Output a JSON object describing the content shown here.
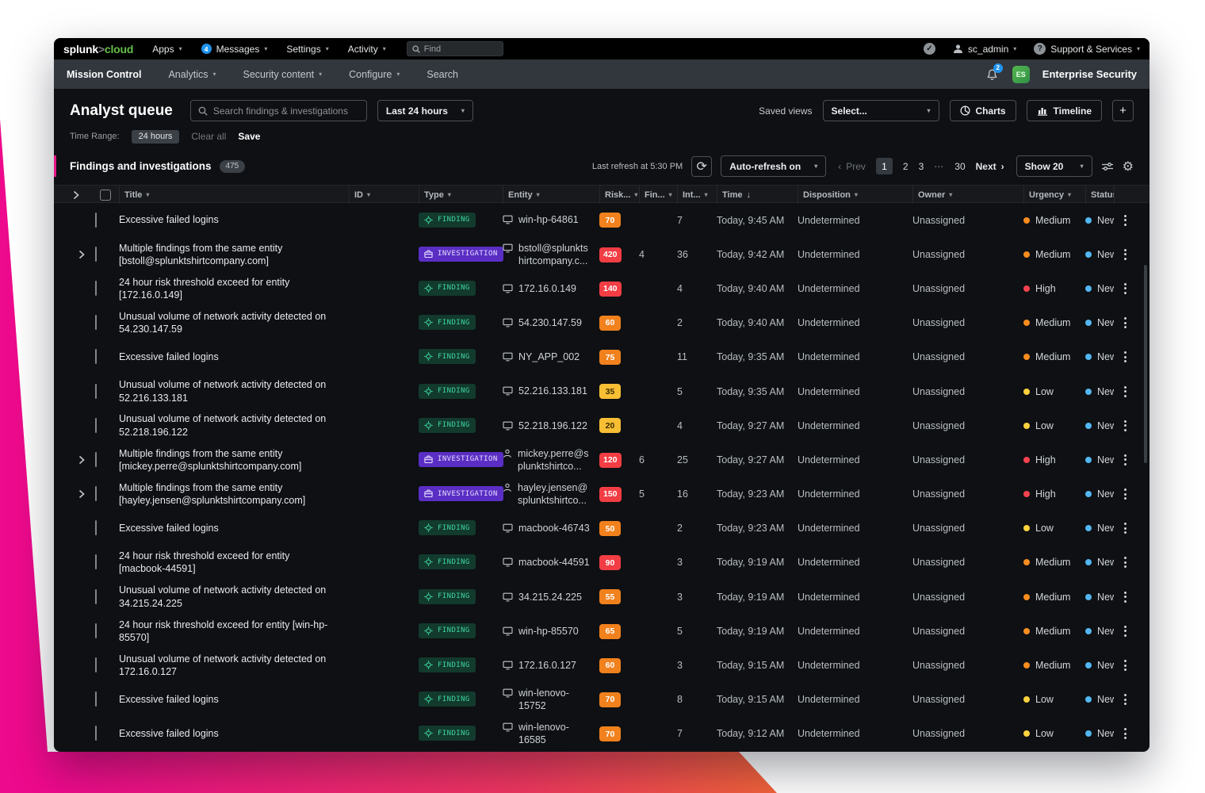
{
  "colors": {
    "brand_gradient_start": "#ee0a8c",
    "brand_gradient_end": "#f58220",
    "accent_green_logo": "#65bf4a",
    "finding_badge_bg": "#123a2d",
    "finding_badge_text": "#3fd6a5",
    "investigation_badge_bg": "#5a2ec4",
    "risk_red": "#f23d44",
    "risk_orange": "#f1811d",
    "risk_yellow": "#f8be34",
    "urgency_medium": "#f78c1f",
    "urgency_high": "#f5424e",
    "urgency_low": "#ffd23e",
    "status_new": "#53b6f0",
    "notification_blue": "#1e93f0"
  },
  "topbar": {
    "logo_splunk": "splunk",
    "logo_gt": ">",
    "logo_cloud": "cloud",
    "menu_apps": "Apps",
    "messages_badge": "4",
    "menu_messages": "Messages",
    "menu_settings": "Settings",
    "menu_activity": "Activity",
    "find_placeholder": "Find",
    "user_name": "sc_admin",
    "support_label": "Support & Services"
  },
  "appbar": {
    "tab_mission_control": "Mission Control",
    "tab_analytics": "Analytics",
    "tab_security_content": "Security content",
    "tab_configure": "Configure",
    "tab_search": "Search",
    "bell_badge": "2",
    "product_initials": "ES",
    "product_name": "Enterprise Security"
  },
  "queue_header": {
    "title": "Analyst queue",
    "search_placeholder": "Search findings & investigations",
    "time_select": "Last 24 hours",
    "saved_views_label": "Saved views",
    "saved_views_select": "Select...",
    "charts_button": "Charts",
    "timeline_button": "Timeline",
    "add_button": "+"
  },
  "time_range_row": {
    "label": "Time Range:",
    "chip": "24 hours",
    "clear_all": "Clear all",
    "save": "Save"
  },
  "toolbar": {
    "title": "Findings and investigations",
    "count": "475",
    "last_refresh": "Last refresh at 5:30 PM",
    "refresh_icon": "⟳",
    "auto_refresh_select": "Auto-refresh on",
    "prev": "Prev",
    "pages": [
      "1",
      "2",
      "3"
    ],
    "current_page": "1",
    "ellipsis": "⋯",
    "last_page": "30",
    "next": "Next",
    "show_select": "Show 20",
    "gear_icon": "⚙"
  },
  "table": {
    "columns": [
      {
        "name": "expand-all",
        "label": "",
        "sort": "chevron"
      },
      {
        "name": "select-all",
        "label": "",
        "sort": "checkbox"
      },
      {
        "name": "title",
        "label": "Title",
        "sort": "caret"
      },
      {
        "name": "id",
        "label": "ID",
        "sort": "caret"
      },
      {
        "name": "type",
        "label": "Type",
        "sort": "caret"
      },
      {
        "name": "entity",
        "label": "Entity",
        "sort": "caret"
      },
      {
        "name": "risk",
        "label": "Risk...",
        "sort": "caret"
      },
      {
        "name": "findings",
        "label": "Fin...",
        "sort": "caret"
      },
      {
        "name": "intermediate",
        "label": "Int...",
        "sort": "caret"
      },
      {
        "name": "time",
        "label": "Time",
        "sort": "down-arrow"
      },
      {
        "name": "disposition",
        "label": "Disposition",
        "sort": "caret"
      },
      {
        "name": "owner",
        "label": "Owner",
        "sort": "caret"
      },
      {
        "name": "urgency",
        "label": "Urgency",
        "sort": "caret"
      },
      {
        "name": "status",
        "label": "Status",
        "sort": "none"
      },
      {
        "name": "actions",
        "label": "",
        "sort": "none"
      }
    ],
    "rows": [
      {
        "expandable": false,
        "title": "Excessive failed logins",
        "type": "FINDING",
        "entity_icon": "monitor",
        "entity": "win-hp-64861",
        "risk": "70",
        "risk_level": "orange",
        "findings": "",
        "intermediate": "7",
        "time": "Today, 9:45 AM",
        "disposition": "Undetermined",
        "owner": "Unassigned",
        "urgency": "Medium",
        "urgency_level": "medium",
        "status": "New"
      },
      {
        "expandable": true,
        "title": "Multiple findings from the same entity [bstoll@splunktshirtcompany.com]",
        "type": "INVESTIGATION",
        "entity_icon": "monitor",
        "entity": "bstoll@splunktshirtcompany.c...",
        "risk": "420",
        "risk_level": "red",
        "findings": "4",
        "intermediate": "36",
        "time": "Today, 9:42 AM",
        "disposition": "Undetermined",
        "owner": "Unassigned",
        "urgency": "Medium",
        "urgency_level": "medium",
        "status": "New"
      },
      {
        "expandable": false,
        "title": "24 hour risk threshold exceed for entity [172.16.0.149]",
        "type": "FINDING",
        "entity_icon": "monitor",
        "entity": "172.16.0.149",
        "risk": "140",
        "risk_level": "red",
        "findings": "",
        "intermediate": "4",
        "time": "Today, 9:40 AM",
        "disposition": "Undetermined",
        "owner": "Unassigned",
        "urgency": "High",
        "urgency_level": "high",
        "status": "New"
      },
      {
        "expandable": false,
        "title": "Unusual volume of network activity detected on 54.230.147.59",
        "type": "FINDING",
        "entity_icon": "monitor",
        "entity": "54.230.147.59",
        "risk": "60",
        "risk_level": "orange",
        "findings": "",
        "intermediate": "2",
        "time": "Today, 9:40 AM",
        "disposition": "Undetermined",
        "owner": "Unassigned",
        "urgency": "Medium",
        "urgency_level": "medium",
        "status": "New"
      },
      {
        "expandable": false,
        "title": "Excessive failed logins",
        "type": "FINDING",
        "entity_icon": "monitor",
        "entity": "NY_APP_002",
        "risk": "75",
        "risk_level": "orange",
        "findings": "",
        "intermediate": "11",
        "time": "Today, 9:35 AM",
        "disposition": "Undetermined",
        "owner": "Unassigned",
        "urgency": "Medium",
        "urgency_level": "medium",
        "status": "New"
      },
      {
        "expandable": false,
        "title": "Unusual volume of network activity detected on 52.216.133.181",
        "type": "FINDING",
        "entity_icon": "monitor",
        "entity": "52.216.133.181",
        "risk": "35",
        "risk_level": "yellow",
        "findings": "",
        "intermediate": "5",
        "time": "Today, 9:35 AM",
        "disposition": "Undetermined",
        "owner": "Unassigned",
        "urgency": "Low",
        "urgency_level": "low",
        "status": "New"
      },
      {
        "expandable": false,
        "title": "Unusual volume of network activity detected on 52.218.196.122",
        "type": "FINDING",
        "entity_icon": "monitor",
        "entity": "52.218.196.122",
        "risk": "20",
        "risk_level": "yellow",
        "findings": "",
        "intermediate": "4",
        "time": "Today, 9:27 AM",
        "disposition": "Undetermined",
        "owner": "Unassigned",
        "urgency": "Low",
        "urgency_level": "low",
        "status": "New"
      },
      {
        "expandable": true,
        "title": "Multiple findings from the same entity [mickey.perre@splunktshirtcompany.com]",
        "type": "INVESTIGATION",
        "entity_icon": "person",
        "entity": "mickey.perre@splunktshirtco...",
        "risk": "120",
        "risk_level": "red",
        "findings": "6",
        "intermediate": "25",
        "time": "Today, 9:27 AM",
        "disposition": "Undetermined",
        "owner": "Unassigned",
        "urgency": "High",
        "urgency_level": "high",
        "status": "New"
      },
      {
        "expandable": true,
        "title": "Multiple findings from the same entity [hayley.jensen@splunktshirtcompany.com]",
        "type": "INVESTIGATION",
        "entity_icon": "person",
        "entity": "hayley.jensen@splunktshirtco...",
        "risk": "150",
        "risk_level": "red",
        "findings": "5",
        "intermediate": "16",
        "time": "Today, 9:23 AM",
        "disposition": "Undetermined",
        "owner": "Unassigned",
        "urgency": "High",
        "urgency_level": "high",
        "status": "New"
      },
      {
        "expandable": false,
        "title": "Excessive failed logins",
        "type": "FINDING",
        "entity_icon": "monitor",
        "entity": "macbook-46743",
        "risk": "50",
        "risk_level": "orange",
        "findings": "",
        "intermediate": "2",
        "time": "Today, 9:23 AM",
        "disposition": "Undetermined",
        "owner": "Unassigned",
        "urgency": "Low",
        "urgency_level": "low",
        "status": "New"
      },
      {
        "expandable": false,
        "title": "24 hour risk threshold exceed for entity [macbook-44591]",
        "type": "FINDING",
        "entity_icon": "monitor",
        "entity": "macbook-44591",
        "risk": "90",
        "risk_level": "red",
        "findings": "",
        "intermediate": "3",
        "time": "Today, 9:19 AM",
        "disposition": "Undetermined",
        "owner": "Unassigned",
        "urgency": "Medium",
        "urgency_level": "medium",
        "status": "New"
      },
      {
        "expandable": false,
        "title": "Unusual volume of network activity detected on 34.215.24.225",
        "type": "FINDING",
        "entity_icon": "monitor",
        "entity": "34.215.24.225",
        "risk": "55",
        "risk_level": "orange",
        "findings": "",
        "intermediate": "3",
        "time": "Today, 9:19 AM",
        "disposition": "Undetermined",
        "owner": "Unassigned",
        "urgency": "Medium",
        "urgency_level": "medium",
        "status": "New"
      },
      {
        "expandable": false,
        "title": "24 hour risk threshold exceed for entity [win-hp-85570]",
        "type": "FINDING",
        "entity_icon": "monitor",
        "entity": "win-hp-85570",
        "risk": "65",
        "risk_level": "orange",
        "findings": "",
        "intermediate": "5",
        "time": "Today, 9:19 AM",
        "disposition": "Undetermined",
        "owner": "Unassigned",
        "urgency": "Medium",
        "urgency_level": "medium",
        "status": "New"
      },
      {
        "expandable": false,
        "title": "Unusual volume of network activity detected on 172.16.0.127",
        "type": "FINDING",
        "entity_icon": "monitor",
        "entity": "172.16.0.127",
        "risk": "60",
        "risk_level": "orange",
        "findings": "",
        "intermediate": "3",
        "time": "Today, 9:15 AM",
        "disposition": "Undetermined",
        "owner": "Unassigned",
        "urgency": "Medium",
        "urgency_level": "medium",
        "status": "New"
      },
      {
        "expandable": false,
        "title": "Excessive failed logins",
        "type": "FINDING",
        "entity_icon": "monitor",
        "entity": "win-lenovo-15752",
        "risk": "70",
        "risk_level": "orange",
        "findings": "",
        "intermediate": "8",
        "time": "Today, 9:15 AM",
        "disposition": "Undetermined",
        "owner": "Unassigned",
        "urgency": "Low",
        "urgency_level": "low",
        "status": "New"
      },
      {
        "expandable": false,
        "title": "Excessive failed logins",
        "type": "FINDING",
        "entity_icon": "monitor",
        "entity": "win-lenovo-16585",
        "risk": "70",
        "risk_level": "orange",
        "findings": "",
        "intermediate": "7",
        "time": "Today, 9:12 AM",
        "disposition": "Undetermined",
        "owner": "Unassigned",
        "urgency": "Low",
        "urgency_level": "low",
        "status": "New"
      }
    ]
  }
}
